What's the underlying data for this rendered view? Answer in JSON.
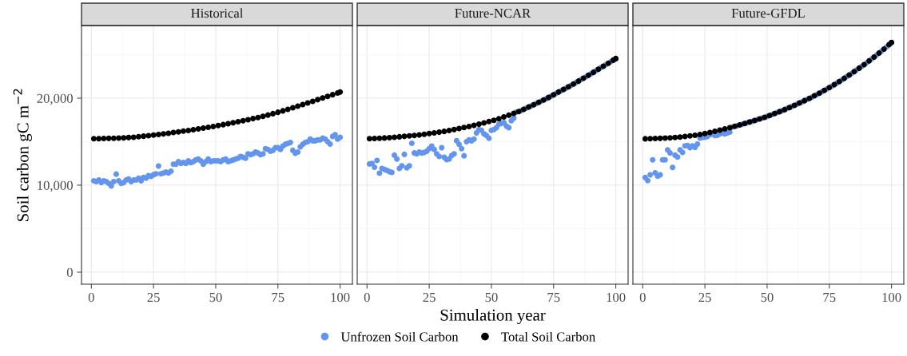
{
  "chart_data": [
    {
      "type": "scatter",
      "title": "Historical",
      "ylabel": "Soil carbon gC m$^{−2}$",
      "xlim": [
        -3.95,
        104.95
      ],
      "xticks": [
        0,
        25,
        50,
        75,
        100
      ],
      "ylim": [
        -1380,
        28350
      ],
      "yticks": [
        {
          "value": 0,
          "label": "0"
        },
        {
          "value": 10000,
          "label": "10,000"
        },
        {
          "value": 20000,
          "label": "20,000"
        }
      ],
      "grid": true,
      "marker": "circle",
      "legend": "bottom",
      "series": [
        {
          "name": "Unfrozen Soil Carbon",
          "color": "#6495ed",
          "x": [
            1,
            2,
            3,
            4,
            5,
            6,
            7,
            8,
            9,
            10,
            11,
            12,
            13,
            14,
            15,
            16,
            17,
            18,
            19,
            20,
            21,
            22,
            23,
            24,
            25,
            26,
            27,
            28,
            29,
            30,
            31,
            32,
            33,
            34,
            35,
            36,
            37,
            38,
            39,
            40,
            41,
            42,
            43,
            44,
            45,
            46,
            47,
            48,
            49,
            50,
            51,
            52,
            53,
            54,
            55,
            56,
            57,
            58,
            59,
            60,
            61,
            62,
            63,
            64,
            65,
            66,
            67,
            68,
            69,
            70,
            71,
            72,
            73,
            74,
            75,
            76,
            77,
            78,
            79,
            80,
            81,
            82,
            83,
            84,
            85,
            86,
            87,
            88,
            89,
            90,
            91,
            92,
            93,
            94,
            95,
            96,
            97,
            98,
            99,
            100
          ],
          "values": [
            10500,
            10400,
            10600,
            10300,
            10500,
            10400,
            10200,
            9900,
            10400,
            11270,
            10500,
            10200,
            10300,
            10600,
            10700,
            10400,
            10600,
            10600,
            10800,
            10500,
            10900,
            10800,
            11100,
            11000,
            11200,
            11300,
            12190,
            11300,
            11400,
            11500,
            11400,
            11600,
            12400,
            12400,
            12700,
            12500,
            12600,
            12500,
            12800,
            12600,
            12700,
            12900,
            13000,
            12800,
            12400,
            12700,
            13000,
            12700,
            12800,
            12800,
            12800,
            12700,
            12900,
            13000,
            12700,
            12800,
            12900,
            13000,
            13100,
            13300,
            13200,
            13100,
            13600,
            13500,
            13600,
            13800,
            13700,
            13500,
            13600,
            14200,
            14100,
            13900,
            14000,
            14300,
            14300,
            14100,
            14500,
            14700,
            14800,
            14900,
            14000,
            13660,
            13800,
            14400,
            14700,
            14900,
            15000,
            15300,
            15100,
            15100,
            15200,
            15200,
            15400,
            15300,
            15000,
            14730,
            15600,
            15800,
            15300,
            15500
          ]
        },
        {
          "name": "Total Soil Carbon",
          "color": "#000000",
          "x": [
            1,
            3,
            5,
            7,
            9,
            11,
            13,
            15,
            17,
            19,
            21,
            23,
            25,
            27,
            29,
            31,
            33,
            35,
            37,
            39,
            41,
            43,
            45,
            47,
            49,
            51,
            53,
            55,
            57,
            59,
            61,
            63,
            65,
            67,
            69,
            71,
            73,
            75,
            77,
            79,
            81,
            83,
            85,
            87,
            89,
            91,
            93,
            95,
            97,
            99,
            100
          ],
          "values": [
            15340,
            15350,
            15360,
            15380,
            15390,
            15410,
            15430,
            15470,
            15510,
            15570,
            15630,
            15690,
            15750,
            15820,
            15900,
            15970,
            16050,
            16130,
            16210,
            16290,
            16380,
            16470,
            16560,
            16650,
            16750,
            16850,
            16960,
            17060,
            17170,
            17290,
            17410,
            17530,
            17650,
            17780,
            17920,
            18060,
            18220,
            18380,
            18540,
            18720,
            18900,
            19080,
            19260,
            19450,
            19640,
            19830,
            20020,
            20210,
            20400,
            20600,
            20700
          ]
        }
      ]
    },
    {
      "type": "scatter",
      "title": "Future-NCAR",
      "xlabel": "Simulation year",
      "xlim": [
        -3.95,
        104.95
      ],
      "xticks": [
        0,
        25,
        50,
        75,
        100
      ],
      "ylim": [
        -1380,
        28350
      ],
      "yticks": [
        {
          "value": 0,
          "label": "0"
        },
        {
          "value": 10000,
          "label": "10,000"
        },
        {
          "value": 20000,
          "label": "20,000"
        }
      ],
      "tick_labels": "x",
      "grid": true,
      "marker": "circle",
      "series": [
        {
          "name": "Unfrozen Soil Carbon",
          "color": "#6495ed",
          "x": [
            1,
            2,
            3,
            4,
            5,
            6,
            7,
            8,
            9,
            10,
            11,
            12,
            13,
            14,
            15,
            16,
            17,
            18,
            19,
            20,
            21,
            22,
            23,
            24,
            25,
            26,
            27,
            28,
            29,
            30,
            31,
            32,
            33,
            34,
            35,
            36,
            37,
            38,
            39,
            40,
            41,
            42,
            43,
            44,
            45,
            46,
            47,
            48,
            49,
            50,
            51,
            52,
            53,
            54,
            55,
            56,
            57,
            58,
            59,
            60,
            62,
            64,
            66,
            68,
            70,
            72,
            74,
            76,
            78,
            80,
            82,
            84,
            86,
            88,
            90,
            92,
            94,
            96,
            98,
            100
          ],
          "values": [
            12440,
            12500,
            12070,
            12840,
            11370,
            11920,
            11800,
            11700,
            11550,
            11460,
            13450,
            13000,
            11920,
            12230,
            13540,
            12000,
            12230,
            14820,
            13700,
            13600,
            13800,
            13700,
            13750,
            13900,
            14200,
            14500,
            14100,
            13600,
            13300,
            14300,
            13200,
            12930,
            13000,
            13400,
            13600,
            15120,
            14700,
            14200,
            13380,
            15000,
            15200,
            15100,
            15300,
            16000,
            16400,
            16300,
            15900,
            15700,
            15400,
            16300,
            16400,
            16600,
            17000,
            17100,
            17200,
            16800,
            16600,
            17400,
            17700,
            18400,
            18580,
            18850,
            19110,
            19380,
            19650,
            19940,
            20230,
            20540,
            20850,
            21150,
            21470,
            21800,
            22130,
            22460,
            22800,
            23150,
            23500,
            23850,
            24200,
            24550
          ]
        },
        {
          "name": "Total Soil Carbon",
          "color": "#000000",
          "x": [
            1,
            3,
            5,
            7,
            9,
            11,
            13,
            15,
            17,
            19,
            21,
            23,
            25,
            27,
            29,
            31,
            33,
            35,
            37,
            39,
            41,
            43,
            45,
            47,
            49,
            51,
            53,
            55,
            57,
            59,
            61,
            63,
            65,
            67,
            69,
            71,
            73,
            75,
            77,
            79,
            81,
            83,
            85,
            87,
            89,
            91,
            93,
            95,
            97,
            99,
            100
          ],
          "values": [
            15340,
            15360,
            15390,
            15420,
            15460,
            15510,
            15560,
            15610,
            15660,
            15710,
            15770,
            15850,
            15930,
            16010,
            16090,
            16180,
            16280,
            16390,
            16510,
            16630,
            16740,
            16870,
            17010,
            17150,
            17310,
            17460,
            17640,
            17840,
            18040,
            18250,
            18460,
            18710,
            18980,
            19240,
            19520,
            19790,
            20080,
            20380,
            20700,
            21000,
            21310,
            21630,
            21960,
            22290,
            22630,
            22970,
            23320,
            23670,
            24020,
            24370,
            24550
          ]
        }
      ]
    },
    {
      "type": "scatter",
      "title": "Future-GFDL",
      "xlim": [
        -3.95,
        104.95
      ],
      "xticks": [
        0,
        25,
        50,
        75,
        100
      ],
      "ylim": [
        -1380,
        28350
      ],
      "yticks": [
        {
          "value": 0,
          "label": "0"
        },
        {
          "value": 10000,
          "label": "10,000"
        },
        {
          "value": 20000,
          "label": "20,000"
        }
      ],
      "tick_labels": "x",
      "grid": true,
      "marker": "circle",
      "series": [
        {
          "name": "Unfrozen Soil Carbon",
          "color": "#6495ed",
          "x": [
            1,
            2,
            3,
            4,
            5,
            6,
            7,
            8,
            9,
            10,
            11,
            12,
            13,
            14,
            15,
            16,
            17,
            18,
            19,
            20,
            21,
            22,
            23,
            24,
            25,
            26,
            27,
            28,
            29,
            30,
            31,
            32,
            33,
            34,
            35,
            36,
            38,
            40,
            42,
            44,
            46,
            48,
            50,
            52,
            54,
            56,
            58,
            60,
            62,
            64,
            66,
            68,
            70,
            72,
            74,
            76,
            78,
            80,
            82,
            84,
            86,
            88,
            90,
            92,
            94,
            96,
            98,
            100
          ],
          "values": [
            10880,
            10520,
            11180,
            12910,
            11420,
            11030,
            11180,
            12910,
            12910,
            14060,
            13700,
            12030,
            13450,
            13240,
            14060,
            13760,
            14510,
            14570,
            14300,
            14510,
            14330,
            14720,
            15420,
            15480,
            15500,
            15600,
            15800,
            15880,
            15700,
            15730,
            15900,
            16000,
            15900,
            16000,
            16100,
            16680,
            16840,
            17000,
            17170,
            17340,
            17520,
            17700,
            17900,
            18120,
            18340,
            18560,
            18800,
            19050,
            19310,
            19570,
            19840,
            20120,
            20420,
            20740,
            21060,
            21380,
            21730,
            22090,
            22470,
            22850,
            23250,
            23650,
            24060,
            24500,
            24960,
            25420,
            25890,
            26390
          ]
        },
        {
          "name": "Total Soil Carbon",
          "color": "#000000",
          "x": [
            1,
            3,
            5,
            7,
            9,
            11,
            13,
            15,
            17,
            19,
            21,
            23,
            25,
            27,
            29,
            31,
            33,
            35,
            37,
            39,
            41,
            43,
            45,
            47,
            49,
            51,
            53,
            55,
            57,
            59,
            61,
            63,
            65,
            67,
            69,
            71,
            73,
            75,
            77,
            79,
            81,
            83,
            85,
            87,
            89,
            91,
            93,
            95,
            97,
            99,
            100
          ],
          "values": [
            15330,
            15340,
            15360,
            15380,
            15410,
            15440,
            15480,
            15530,
            15590,
            15660,
            15740,
            15830,
            15940,
            16060,
            16190,
            16320,
            16460,
            16610,
            16760,
            16920,
            17090,
            17260,
            17430,
            17610,
            17800,
            18010,
            18230,
            18450,
            18680,
            18920,
            19180,
            19440,
            19710,
            19980,
            20270,
            20580,
            20900,
            21220,
            21550,
            21910,
            22280,
            22660,
            23050,
            23450,
            23860,
            24280,
            24730,
            25190,
            25650,
            26140,
            26390
          ]
        }
      ]
    }
  ]
}
